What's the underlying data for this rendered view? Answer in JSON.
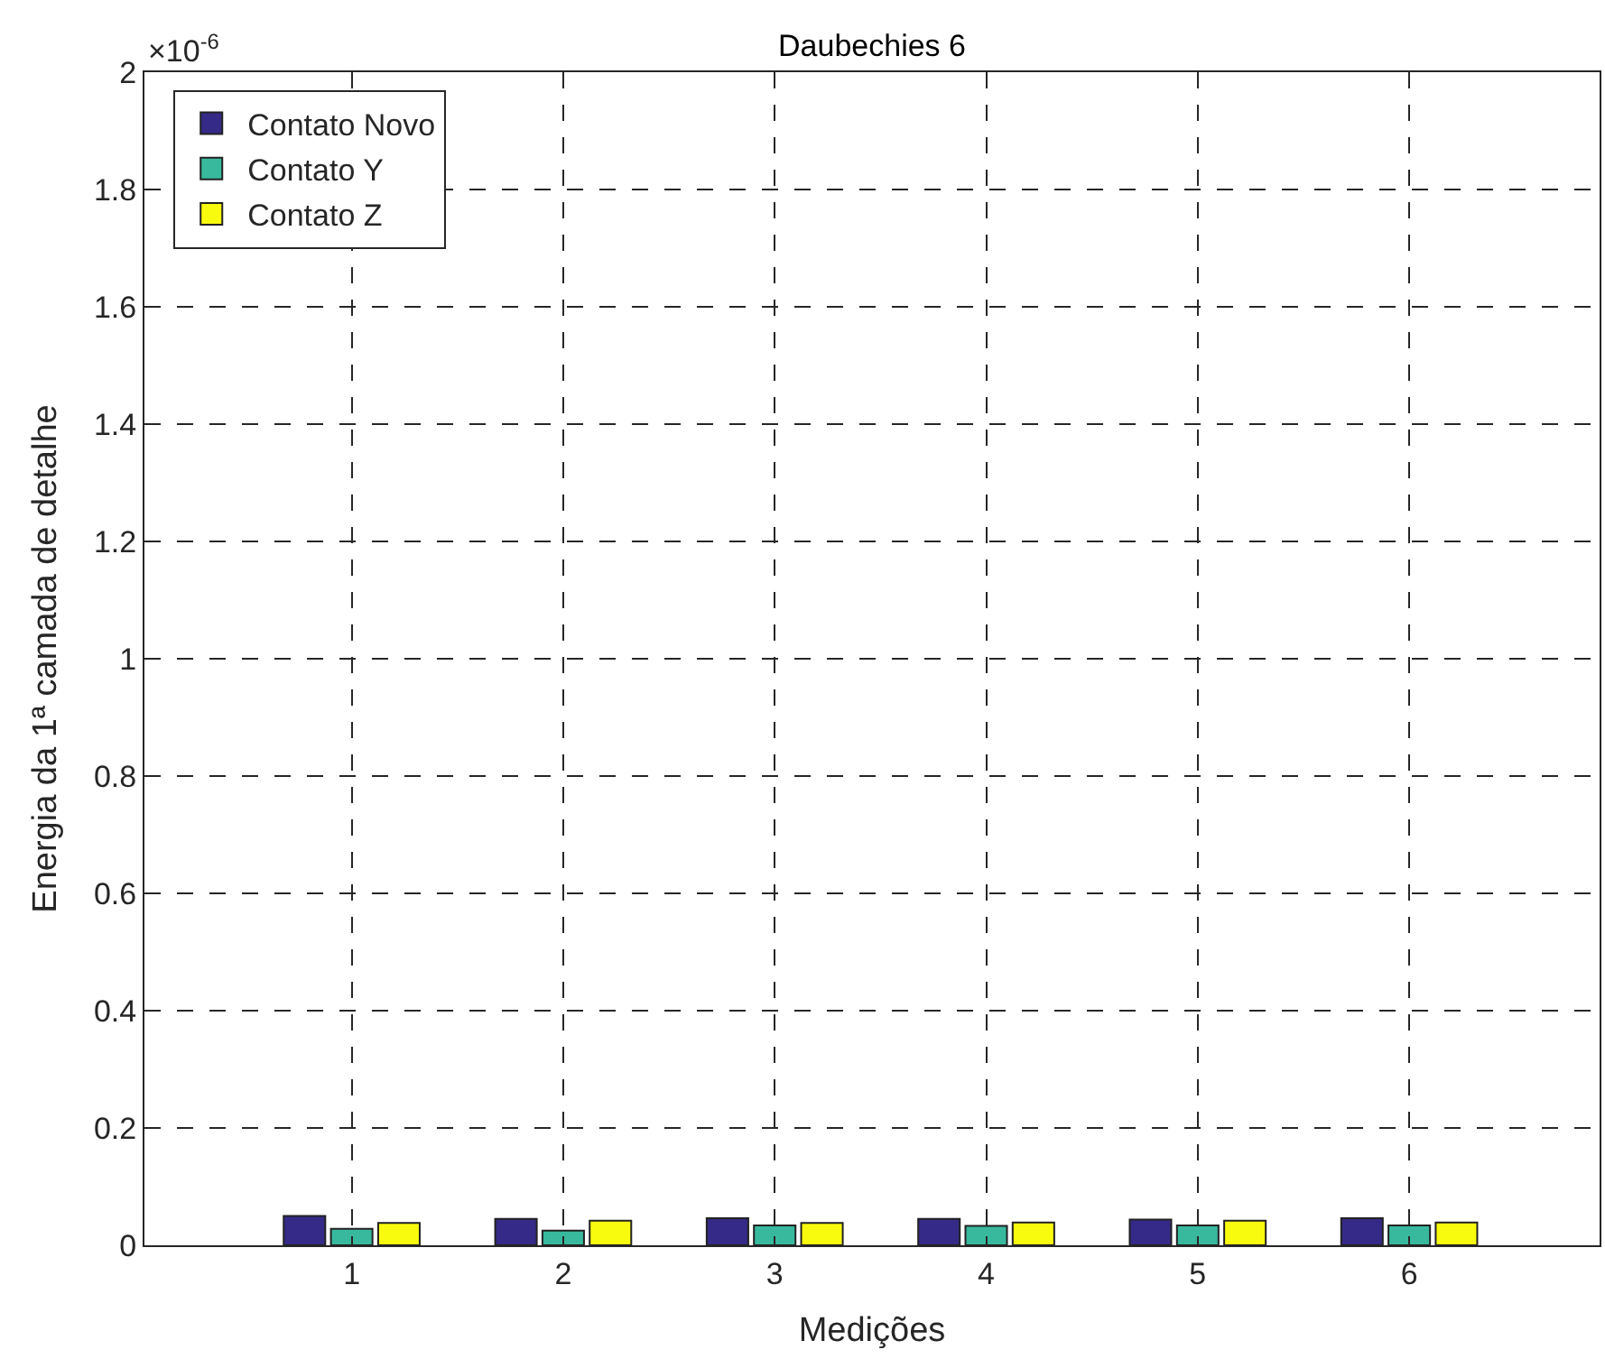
{
  "chart_data": {
    "type": "bar",
    "title": "Daubechies 6",
    "xlabel": "Medições",
    "ylabel": "Energia da 1ª camada de detalhe",
    "categories": [
      "1",
      "2",
      "3",
      "4",
      "5",
      "6"
    ],
    "series": [
      {
        "name": "Contato Novo",
        "color": "#352a87",
        "values": [
          0.05,
          0.045,
          0.046,
          0.045,
          0.044,
          0.046
        ]
      },
      {
        "name": "Contato Y",
        "color": "#38b99e",
        "values": [
          0.028,
          0.025,
          0.034,
          0.033,
          0.034,
          0.034
        ]
      },
      {
        "name": "Contato Z",
        "color": "#f9fb0e",
        "values": [
          0.038,
          0.042,
          0.038,
          0.039,
          0.042,
          0.039
        ]
      }
    ],
    "ylim": [
      0,
      2
    ],
    "yticks": [
      0,
      0.2,
      0.4,
      0.6,
      0.8,
      1,
      1.2,
      1.4,
      1.6,
      1.8,
      2
    ],
    "annotations": [
      "×10$^{-6}$"
    ],
    "grid": true,
    "legend": "top left"
  }
}
